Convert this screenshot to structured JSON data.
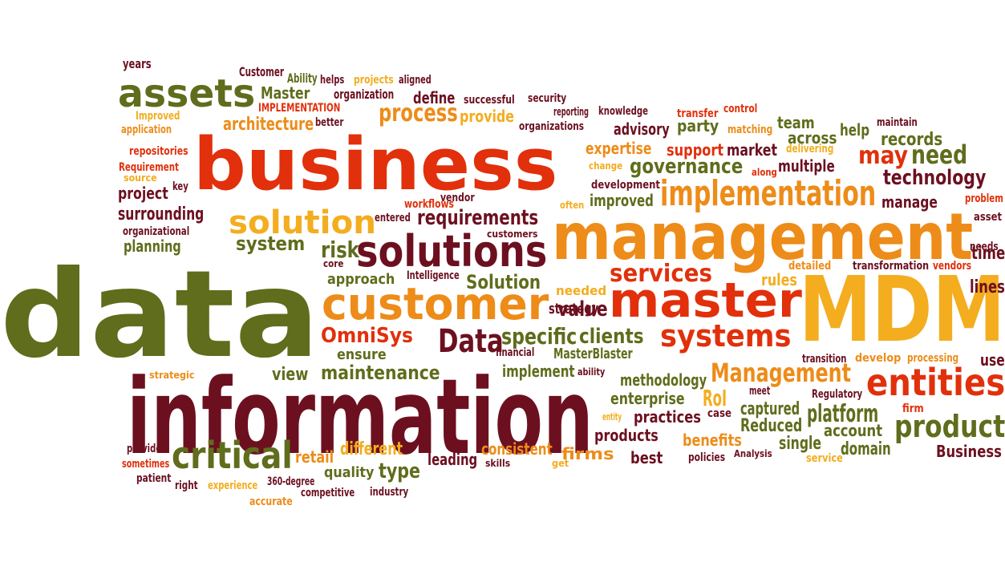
{
  "palette": {
    "olive": "#5f6d1c",
    "red": "#e1300b",
    "orange": "#ed8c19",
    "amber": "#f3ad1f",
    "maroon": "#6c1020"
  },
  "words": [
    {
      "text": "data",
      "color": "olive"
    },
    {
      "text": "business",
      "color": "red"
    },
    {
      "text": "management",
      "color": "orange"
    },
    {
      "text": "MDM",
      "color": "amber"
    },
    {
      "text": "information",
      "color": "maroon"
    },
    {
      "text": "master",
      "color": "red"
    },
    {
      "text": "customer",
      "color": "orange"
    },
    {
      "text": "solutions",
      "color": "maroon"
    },
    {
      "text": "assets",
      "color": "olive"
    },
    {
      "text": "solution",
      "color": "amber"
    },
    {
      "text": "implementation",
      "color": "orange"
    },
    {
      "text": "critical",
      "color": "olive"
    },
    {
      "text": "entities",
      "color": "red"
    },
    {
      "text": "product",
      "color": "olive"
    },
    {
      "text": "systems",
      "color": "red"
    },
    {
      "text": "Management",
      "color": "orange"
    },
    {
      "text": "Data",
      "color": "maroon"
    },
    {
      "text": "services",
      "color": "red"
    },
    {
      "text": "process",
      "color": "orange"
    },
    {
      "text": "requirements",
      "color": "maroon"
    },
    {
      "text": "governance",
      "color": "olive"
    },
    {
      "text": "technology",
      "color": "maroon"
    },
    {
      "text": "need",
      "color": "olive"
    },
    {
      "text": "may",
      "color": "red"
    },
    {
      "text": "risk",
      "color": "olive"
    },
    {
      "text": "system",
      "color": "olive"
    },
    {
      "text": "maintenance",
      "color": "olive"
    },
    {
      "text": "platform",
      "color": "olive"
    },
    {
      "text": "specific",
      "color": "olive"
    },
    {
      "text": "clients",
      "color": "olive"
    },
    {
      "text": "Solution",
      "color": "olive"
    },
    {
      "text": "value",
      "color": "maroon"
    },
    {
      "text": "OmniSys",
      "color": "red"
    },
    {
      "text": "type",
      "color": "olive"
    },
    {
      "text": "architecture",
      "color": "orange"
    },
    {
      "text": "surrounding",
      "color": "maroon"
    },
    {
      "text": "define",
      "color": "maroon"
    },
    {
      "text": "Master",
      "color": "olive"
    },
    {
      "text": "advisory",
      "color": "maroon"
    },
    {
      "text": "party",
      "color": "olive"
    },
    {
      "text": "records",
      "color": "olive"
    },
    {
      "text": "team",
      "color": "olive"
    },
    {
      "text": "across",
      "color": "olive"
    },
    {
      "text": "help",
      "color": "olive"
    },
    {
      "text": "expertise",
      "color": "orange"
    },
    {
      "text": "support",
      "color": "red"
    },
    {
      "text": "market",
      "color": "maroon"
    },
    {
      "text": "multiple",
      "color": "maroon"
    },
    {
      "text": "improved",
      "color": "olive"
    },
    {
      "text": "manage",
      "color": "maroon"
    },
    {
      "text": "project",
      "color": "maroon"
    },
    {
      "text": "planning",
      "color": "olive"
    },
    {
      "text": "approach",
      "color": "olive"
    },
    {
      "text": "view",
      "color": "olive"
    },
    {
      "text": "ensure",
      "color": "olive"
    },
    {
      "text": "implement",
      "color": "olive"
    },
    {
      "text": "MasterBlaster",
      "color": "olive"
    },
    {
      "text": "strategy",
      "color": "maroon"
    },
    {
      "text": "methodology",
      "color": "olive"
    },
    {
      "text": "enterprise",
      "color": "olive"
    },
    {
      "text": "RoI",
      "color": "amber"
    },
    {
      "text": "captured",
      "color": "olive"
    },
    {
      "text": "practices",
      "color": "maroon"
    },
    {
      "text": "Reduced",
      "color": "olive"
    },
    {
      "text": "account",
      "color": "olive"
    },
    {
      "text": "single",
      "color": "olive"
    },
    {
      "text": "domain",
      "color": "olive"
    },
    {
      "text": "Business",
      "color": "maroon"
    },
    {
      "text": "products",
      "color": "maroon"
    },
    {
      "text": "benefits",
      "color": "orange"
    },
    {
      "text": "best",
      "color": "maroon"
    },
    {
      "text": "leading",
      "color": "maroon"
    },
    {
      "text": "firms",
      "color": "orange"
    },
    {
      "text": "consistent",
      "color": "orange"
    },
    {
      "text": "different",
      "color": "amber"
    },
    {
      "text": "quality",
      "color": "olive"
    },
    {
      "text": "retail",
      "color": "orange"
    },
    {
      "text": "needed",
      "color": "amber"
    },
    {
      "text": "rules",
      "color": "amber"
    },
    {
      "text": "lines",
      "color": "maroon"
    },
    {
      "text": "time",
      "color": "maroon"
    },
    {
      "text": "use",
      "color": "maroon"
    },
    {
      "text": "provide",
      "color": "amber"
    },
    {
      "text": "years",
      "color": "maroon"
    },
    {
      "text": "Customer",
      "color": "maroon"
    },
    {
      "text": "Ability",
      "color": "olive"
    },
    {
      "text": "helps",
      "color": "maroon"
    },
    {
      "text": "projects",
      "color": "amber"
    },
    {
      "text": "aligned",
      "color": "maroon"
    },
    {
      "text": "IMPLEMENTATION",
      "color": "red"
    },
    {
      "text": "organization",
      "color": "maroon"
    },
    {
      "text": "successful",
      "color": "maroon"
    },
    {
      "text": "security",
      "color": "maroon"
    },
    {
      "text": "reporting",
      "color": "maroon"
    },
    {
      "text": "knowledge",
      "color": "maroon"
    },
    {
      "text": "transfer",
      "color": "red"
    },
    {
      "text": "control",
      "color": "red"
    },
    {
      "text": "maintain",
      "color": "maroon"
    },
    {
      "text": "Improved",
      "color": "amber"
    },
    {
      "text": "better",
      "color": "maroon"
    },
    {
      "text": "application",
      "color": "orange"
    },
    {
      "text": "organizations",
      "color": "maroon"
    },
    {
      "text": "matching",
      "color": "orange"
    },
    {
      "text": "delivering",
      "color": "amber"
    },
    {
      "text": "repositories",
      "color": "red"
    },
    {
      "text": "Requirement",
      "color": "red"
    },
    {
      "text": "source",
      "color": "amber"
    },
    {
      "text": "key",
      "color": "maroon"
    },
    {
      "text": "change",
      "color": "amber"
    },
    {
      "text": "development",
      "color": "maroon"
    },
    {
      "text": "along",
      "color": "red"
    },
    {
      "text": "workflows",
      "color": "red"
    },
    {
      "text": "vendor",
      "color": "maroon"
    },
    {
      "text": "often",
      "color": "amber"
    },
    {
      "text": "problem",
      "color": "red"
    },
    {
      "text": "entered",
      "color": "maroon"
    },
    {
      "text": "asset",
      "color": "maroon"
    },
    {
      "text": "organizational",
      "color": "maroon"
    },
    {
      "text": "customers",
      "color": "maroon"
    },
    {
      "text": "needs",
      "color": "maroon"
    },
    {
      "text": "detailed",
      "color": "orange"
    },
    {
      "text": "transformation",
      "color": "maroon"
    },
    {
      "text": "vendors",
      "color": "red"
    },
    {
      "text": "core",
      "color": "maroon"
    },
    {
      "text": "Intelligence",
      "color": "maroon"
    },
    {
      "text": "financial",
      "color": "maroon"
    },
    {
      "text": "ability",
      "color": "maroon"
    },
    {
      "text": "transition",
      "color": "maroon"
    },
    {
      "text": "develop",
      "color": "orange"
    },
    {
      "text": "processing",
      "color": "orange"
    },
    {
      "text": "strategic",
      "color": "orange"
    },
    {
      "text": "meet",
      "color": "maroon"
    },
    {
      "text": "Regulatory",
      "color": "maroon"
    },
    {
      "text": "entity",
      "color": "amber"
    },
    {
      "text": "case",
      "color": "maroon"
    },
    {
      "text": "firm",
      "color": "red"
    },
    {
      "text": "provider",
      "color": "maroon"
    },
    {
      "text": "sometimes",
      "color": "red"
    },
    {
      "text": "patient",
      "color": "maroon"
    },
    {
      "text": "right",
      "color": "maroon"
    },
    {
      "text": "experience",
      "color": "amber"
    },
    {
      "text": "360-degree",
      "color": "maroon"
    },
    {
      "text": "competitive",
      "color": "maroon"
    },
    {
      "text": "industry",
      "color": "maroon"
    },
    {
      "text": "accurate",
      "color": "orange"
    },
    {
      "text": "skills",
      "color": "maroon"
    },
    {
      "text": "get",
      "color": "amber"
    },
    {
      "text": "policies",
      "color": "maroon"
    },
    {
      "text": "Analysis",
      "color": "maroon"
    },
    {
      "text": "service",
      "color": "amber"
    }
  ]
}
